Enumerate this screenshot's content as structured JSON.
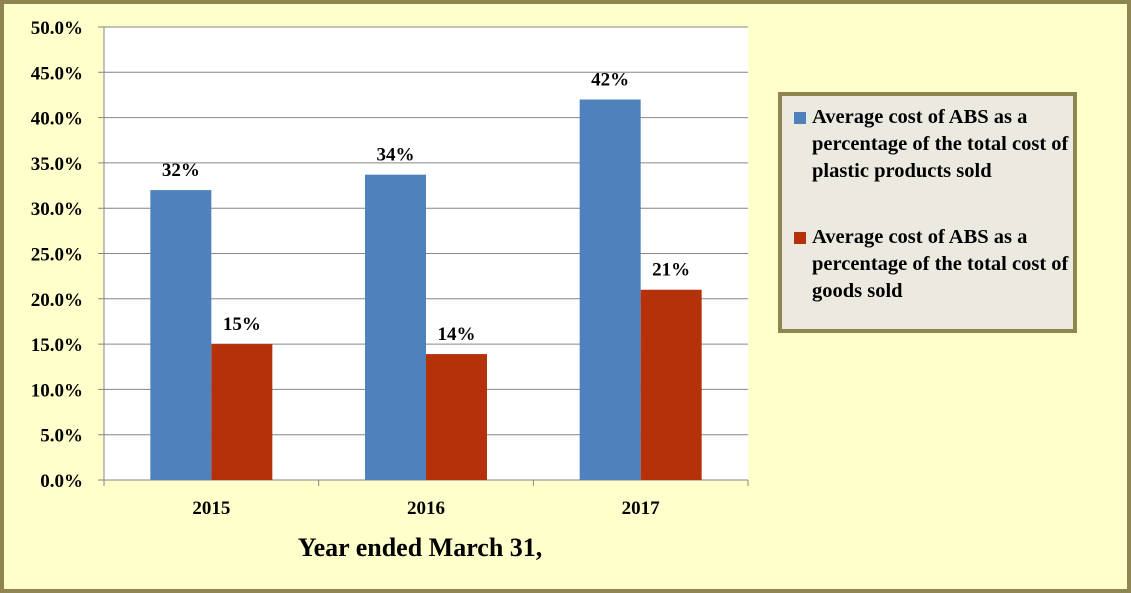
{
  "chart_data": {
    "type": "bar",
    "title": "",
    "xlabel": "Year ended March 31,",
    "ylabel": "",
    "categories": [
      "2015",
      "2016",
      "2017"
    ],
    "series": [
      {
        "name": "Average cost of ABS as a percentage of the total cost of plastic products sold",
        "values": [
          32,
          33.7,
          42
        ],
        "labels": [
          "32%",
          "34%",
          "42%"
        ],
        "color": "#4f81bd"
      },
      {
        "name": "Average cost of ABS as a percentage of the total cost of goods sold",
        "values": [
          15,
          13.9,
          21
        ],
        "labels": [
          "15%",
          "14%",
          "21%"
        ],
        "color": "#b5310a"
      }
    ],
    "ylim": [
      0,
      50
    ],
    "yticks": [
      "0.0%",
      "5.0%",
      "10.0%",
      "15.0%",
      "20.0%",
      "25.0%",
      "30.0%",
      "35.0%",
      "40.0%",
      "45.0%",
      "50.0%"
    ],
    "grid": true,
    "legend_position": "right"
  }
}
